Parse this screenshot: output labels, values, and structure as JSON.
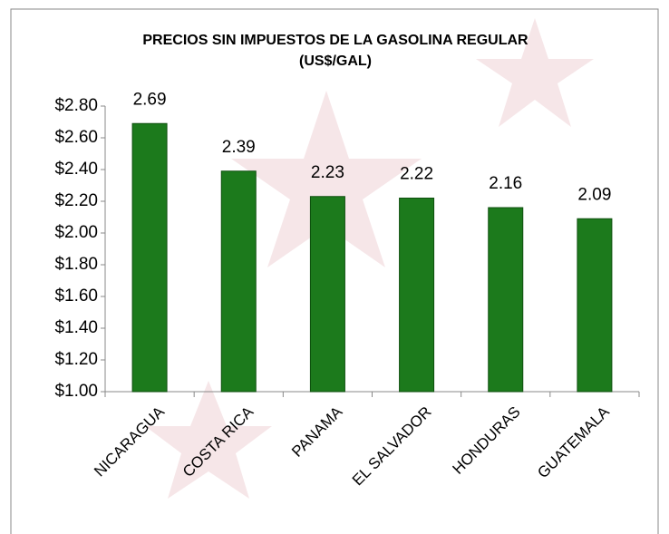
{
  "chart_data": {
    "type": "bar",
    "title": [
      "PRECIOS SIN IMPUESTOS DE LA GASOLINA REGULAR",
      "(US$/GAL)"
    ],
    "categories": [
      "NICARAGUA",
      "COSTA RICA",
      "PANAMA",
      "EL SALVADOR",
      "HONDURAS",
      "GUATEMALA"
    ],
    "values": [
      2.69,
      2.39,
      2.23,
      2.22,
      2.16,
      2.09
    ],
    "color": "#1c7a1c",
    "ylim": [
      1.0,
      2.8
    ],
    "yticks": [
      {
        "value": 1.0,
        "label": "$1.00"
      },
      {
        "value": 1.2,
        "label": "$1.20"
      },
      {
        "value": 1.4,
        "label": "$1.40"
      },
      {
        "value": 1.6,
        "label": "$1.60"
      },
      {
        "value": 1.8,
        "label": "$1.80"
      },
      {
        "value": 2.0,
        "label": "$2.00"
      },
      {
        "value": 2.2,
        "label": "$2.20"
      },
      {
        "value": 2.4,
        "label": "$2.40"
      },
      {
        "value": 2.6,
        "label": "$2.60"
      },
      {
        "value": 2.8,
        "label": "$2.80"
      }
    ],
    "grid": false
  }
}
